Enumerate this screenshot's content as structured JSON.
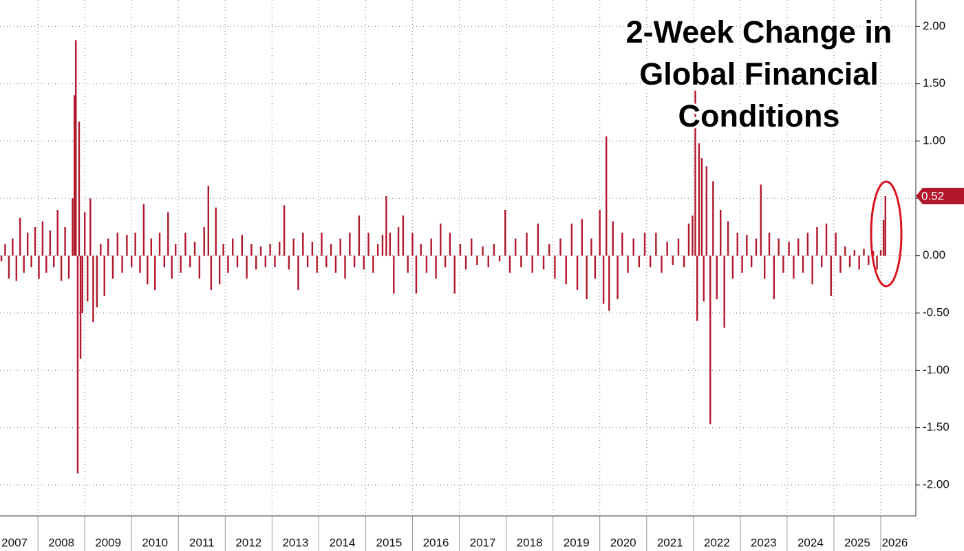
{
  "chart_data": {
    "type": "bar",
    "title_lines": [
      "2-Week Change in",
      "Global Financial",
      "Conditions"
    ],
    "color": "#b3172b",
    "xlim": [
      2007.19,
      2026.75
    ],
    "ylim": [
      -2.27,
      2.23
    ],
    "yticks": [
      {
        "value": 2,
        "label": "2.00"
      },
      {
        "value": 1.5,
        "label": "1.50"
      },
      {
        "value": 1,
        "label": "1.00"
      },
      {
        "value": 0.5,
        "label": "0.50"
      },
      {
        "value": 0,
        "label": "0.00"
      },
      {
        "value": -0.5,
        "label": "-0.50"
      },
      {
        "value": -1,
        "label": "-1.00"
      },
      {
        "value": -1.5,
        "label": "-1.50"
      },
      {
        "value": -2,
        "label": "-2.00"
      }
    ],
    "xgrid": [
      2008,
      2009,
      2010,
      2011,
      2012,
      2013,
      2014,
      2015,
      2016,
      2017,
      2018,
      2019,
      2020,
      2021,
      2022,
      2023,
      2024,
      2025,
      2026
    ],
    "xticks": [
      {
        "value": 2007.5,
        "label": "2007"
      },
      {
        "value": 2008.5,
        "label": "2008"
      },
      {
        "value": 2009.5,
        "label": "2009"
      },
      {
        "value": 2010.5,
        "label": "2010"
      },
      {
        "value": 2011.5,
        "label": "2011"
      },
      {
        "value": 2012.5,
        "label": "2012"
      },
      {
        "value": 2013.5,
        "label": "2013"
      },
      {
        "value": 2014.5,
        "label": "2014"
      },
      {
        "value": 2015.5,
        "label": "2015"
      },
      {
        "value": 2016.5,
        "label": "2016"
      },
      {
        "value": 2017.5,
        "label": "2017"
      },
      {
        "value": 2018.5,
        "label": "2018"
      },
      {
        "value": 2019.5,
        "label": "2019"
      },
      {
        "value": 2020.5,
        "label": "2020"
      },
      {
        "value": 2021.5,
        "label": "2021"
      },
      {
        "value": 2022.5,
        "label": "2022"
      },
      {
        "value": 2023.5,
        "label": "2023"
      },
      {
        "value": 2024.5,
        "label": "2024"
      },
      {
        "value": 2025.5,
        "label": "2025"
      },
      {
        "value": 2026.3,
        "label": "2026"
      }
    ],
    "grid": true,
    "last_value": 0.52,
    "x": [
      2007.22,
      2007.3,
      2007.38,
      2007.46,
      2007.54,
      2007.62,
      2007.7,
      2007.78,
      2007.86,
      2007.94,
      2008.02,
      2008.1,
      2008.18,
      2008.26,
      2008.34,
      2008.42,
      2008.5,
      2008.58,
      2008.66,
      2008.74,
      2008.78,
      2008.81,
      2008.85,
      2008.88,
      2008.91,
      2008.95,
      2009.0,
      2009.06,
      2009.12,
      2009.18,
      2009.26,
      2009.34,
      2009.42,
      2009.5,
      2009.6,
      2009.7,
      2009.8,
      2009.9,
      2010.0,
      2010.08,
      2010.18,
      2010.26,
      2010.34,
      2010.42,
      2010.5,
      2010.6,
      2010.7,
      2010.78,
      2010.86,
      2010.94,
      2011.05,
      2011.15,
      2011.25,
      2011.35,
      2011.45,
      2011.55,
      2011.64,
      2011.7,
      2011.8,
      2011.88,
      2011.96,
      2012.06,
      2012.16,
      2012.26,
      2012.36,
      2012.46,
      2012.56,
      2012.66,
      2012.76,
      2012.86,
      2012.96,
      2013.06,
      2013.16,
      2013.26,
      2013.36,
      2013.46,
      2013.56,
      2013.66,
      2013.76,
      2013.86,
      2013.96,
      2014.06,
      2014.16,
      2014.26,
      2014.36,
      2014.46,
      2014.56,
      2014.66,
      2014.76,
      2014.86,
      2014.96,
      2015.06,
      2015.16,
      2015.26,
      2015.36,
      2015.44,
      2015.52,
      2015.6,
      2015.7,
      2015.8,
      2015.9,
      2016.0,
      2016.08,
      2016.18,
      2016.3,
      2016.4,
      2016.5,
      2016.6,
      2016.7,
      2016.8,
      2016.9,
      2017.02,
      2017.14,
      2017.26,
      2017.38,
      2017.5,
      2017.62,
      2017.74,
      2017.86,
      2017.98,
      2018.08,
      2018.2,
      2018.32,
      2018.44,
      2018.56,
      2018.68,
      2018.8,
      2018.92,
      2019.04,
      2019.16,
      2019.28,
      2019.4,
      2019.52,
      2019.62,
      2019.72,
      2019.82,
      2019.9,
      2020.0,
      2020.08,
      2020.14,
      2020.2,
      2020.28,
      2020.38,
      2020.48,
      2020.6,
      2020.72,
      2020.84,
      2020.96,
      2021.08,
      2021.2,
      2021.32,
      2021.44,
      2021.56,
      2021.68,
      2021.8,
      2021.9,
      2021.98,
      2022.04,
      2022.08,
      2022.12,
      2022.18,
      2022.22,
      2022.28,
      2022.36,
      2022.42,
      2022.5,
      2022.58,
      2022.66,
      2022.74,
      2022.84,
      2022.94,
      2023.04,
      2023.14,
      2023.24,
      2023.34,
      2023.44,
      2023.52,
      2023.62,
      2023.72,
      2023.82,
      2023.92,
      2024.04,
      2024.14,
      2024.24,
      2024.34,
      2024.44,
      2024.54,
      2024.64,
      2024.74,
      2024.84,
      2024.94,
      2025.04,
      2025.14,
      2025.24,
      2025.34,
      2025.44,
      2025.54,
      2025.64,
      2025.74,
      2025.84,
      2025.92,
      2026.0,
      2026.06,
      2026.1
    ],
    "values": [
      -0.05,
      0.1,
      -0.2,
      0.15,
      -0.22,
      0.33,
      -0.15,
      0.2,
      -0.1,
      0.25,
      -0.2,
      0.3,
      -0.15,
      0.22,
      -0.1,
      0.4,
      -0.22,
      0.25,
      -0.2,
      0.5,
      1.4,
      1.88,
      -1.9,
      1.17,
      -0.9,
      -0.5,
      0.38,
      -0.4,
      0.5,
      -0.58,
      -0.45,
      0.1,
      -0.35,
      0.15,
      -0.2,
      0.2,
      -0.15,
      0.18,
      -0.1,
      0.2,
      -0.15,
      0.45,
      -0.25,
      0.15,
      -0.3,
      0.2,
      -0.1,
      0.38,
      -0.2,
      0.1,
      -0.15,
      0.2,
      -0.1,
      0.12,
      -0.2,
      0.25,
      0.61,
      -0.3,
      0.42,
      -0.25,
      0.1,
      -0.15,
      0.15,
      -0.1,
      0.18,
      -0.2,
      0.1,
      -0.12,
      0.08,
      -0.1,
      0.1,
      -0.1,
      0.12,
      0.44,
      -0.12,
      0.15,
      -0.3,
      0.2,
      -0.1,
      0.12,
      -0.15,
      0.2,
      -0.1,
      0.1,
      -0.15,
      0.15,
      -0.2,
      0.2,
      -0.1,
      0.35,
      -0.12,
      0.2,
      -0.15,
      0.1,
      0.18,
      0.52,
      0.2,
      -0.33,
      0.25,
      0.35,
      -0.15,
      0.2,
      -0.33,
      0.1,
      -0.15,
      0.15,
      -0.2,
      0.28,
      -0.1,
      0.2,
      -0.33,
      0.1,
      -0.12,
      0.15,
      -0.08,
      0.08,
      -0.1,
      0.1,
      -0.05,
      0.4,
      -0.15,
      0.15,
      -0.1,
      0.2,
      -0.15,
      0.28,
      -0.12,
      0.1,
      -0.2,
      0.15,
      -0.25,
      0.28,
      -0.3,
      0.32,
      -0.38,
      0.15,
      -0.2,
      0.4,
      -0.42,
      1.04,
      -0.48,
      0.3,
      -0.38,
      0.2,
      -0.15,
      0.15,
      -0.1,
      0.2,
      -0.1,
      0.2,
      -0.15,
      0.12,
      -0.08,
      0.15,
      -0.1,
      0.28,
      0.35,
      1.44,
      -0.57,
      0.98,
      0.85,
      -0.4,
      0.78,
      -1.47,
      0.65,
      -0.38,
      0.4,
      -0.63,
      0.3,
      -0.2,
      0.2,
      -0.15,
      0.18,
      -0.1,
      0.15,
      0.62,
      -0.2,
      0.2,
      -0.38,
      0.15,
      -0.15,
      0.12,
      -0.2,
      0.15,
      -0.15,
      0.2,
      -0.25,
      0.25,
      -0.1,
      0.28,
      -0.35,
      0.2,
      -0.15,
      0.08,
      -0.1,
      0.05,
      -0.12,
      0.06,
      -0.08,
      0.04,
      -0.12,
      0.05,
      0.31,
      0.52
    ]
  }
}
